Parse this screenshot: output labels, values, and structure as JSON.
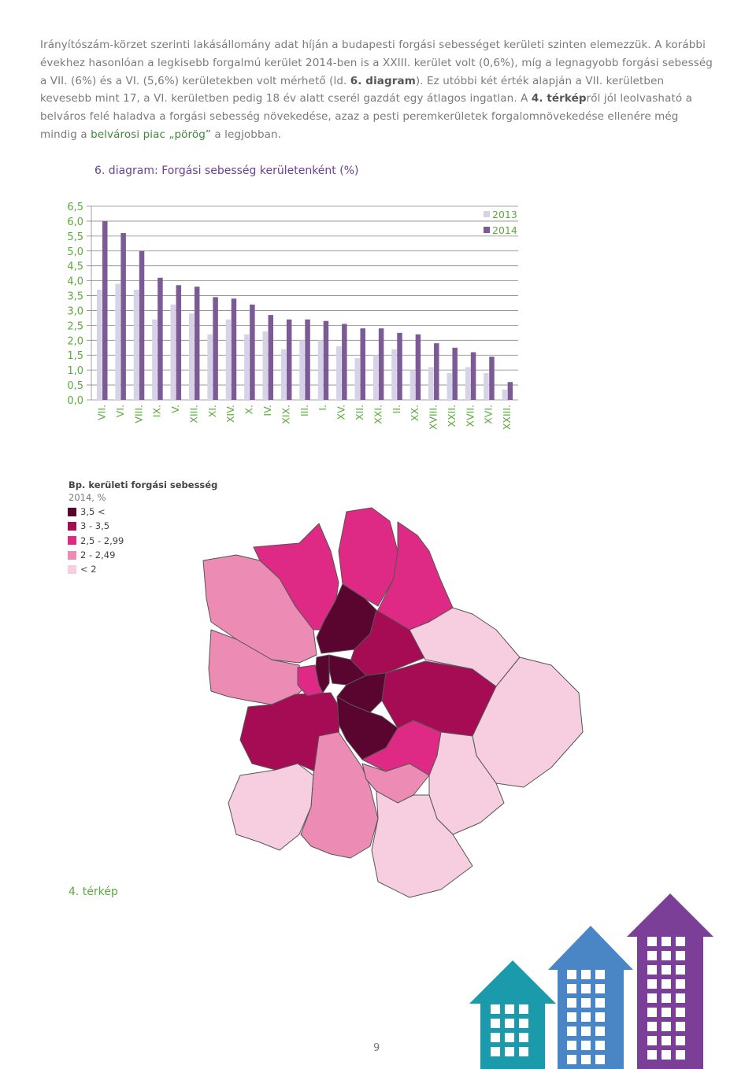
{
  "paragraph": {
    "part1": "Irányítószám-körzet szerinti lakásállomány adat híján a budapesti forgási sebességet kerületi szinten elemezzük. A korábbi évekhez hasonlóan a legkisebb forgalmú kerület 2014-ben is a XXIII. kerület volt (0,6%), míg a legnagyobb forgási sebesség a VII. (6%) és a VI. (5,6%) kerületekben volt mérhető (ld. ",
    "bold1": "6. diagram",
    "part2": "). Ez utóbbi két érték alapján a VII. kerületben kevesebb mint 17, a VI. kerületben pedig 18 év alatt cserél gazdát egy átlagos ingatlan. A ",
    "bold2": "4. térkép",
    "part3": "ről jól leolvasható a belváros felé haladva a forgási sebesség növekedése, azaz a pesti peremkerületek forgalomnövekedése ellenére még mindig a ",
    "green": "belvárosi piac „pörög”",
    "part4": " a legjobban."
  },
  "chart_data": {
    "type": "bar",
    "title": "6. diagram: Forgási sebesség kerületenként (%)",
    "categories": [
      "VII.",
      "VI.",
      "VIII.",
      "IX.",
      "V.",
      "XIII.",
      "XI.",
      "XIV.",
      "X.",
      "IV.",
      "XIX.",
      "III.",
      "I.",
      "XV.",
      "XII.",
      "XXI.",
      "II.",
      "XX.",
      "XVIII.",
      "XXII.",
      "XVII.",
      "XVI.",
      "XXIII."
    ],
    "series": [
      {
        "name": "2013",
        "color": "#d6d3e8",
        "values": [
          3.7,
          3.9,
          3.7,
          2.7,
          3.2,
          2.9,
          2.2,
          2.7,
          2.2,
          2.3,
          1.7,
          2.0,
          2.0,
          1.8,
          1.4,
          1.5,
          1.7,
          1.0,
          1.1,
          0.9,
          1.1,
          0.9,
          0.35
        ]
      },
      {
        "name": "2014",
        "color": "#7b5a96",
        "values": [
          6.0,
          5.6,
          5.0,
          4.1,
          3.85,
          3.8,
          3.45,
          3.4,
          3.2,
          2.85,
          2.7,
          2.7,
          2.65,
          2.55,
          2.4,
          2.4,
          2.25,
          2.2,
          1.9,
          1.75,
          1.6,
          1.45,
          0.6
        ]
      }
    ],
    "y_ticks": [
      "0,0",
      "0,5",
      "1,0",
      "1,5",
      "2,0",
      "2,5",
      "3,0",
      "3,5",
      "4,0",
      "4,5",
      "5,0",
      "5,5",
      "6,0",
      "6,5"
    ],
    "ylim": [
      0,
      6.5
    ],
    "grid": true,
    "legend_placement": "top-right",
    "tick_color": "#5aab3a",
    "label_color": "#5aab3a"
  },
  "map_legend": {
    "title": "Bp. kerületi forgási sebesség",
    "subtitle": "2014, %",
    "items": [
      {
        "label": "3,5 <",
        "color": "#5a0430"
      },
      {
        "label": "3 - 3,5",
        "color": "#a50c53"
      },
      {
        "label": "2,5 - 2,99",
        "color": "#de2a84"
      },
      {
        "label": "2 - 2,49",
        "color": "#ec8cb4"
      },
      {
        "label": "< 2",
        "color": "#f7cde0"
      }
    ]
  },
  "map_caption": "4. térkép",
  "page_number": "9",
  "decoration_colors": {
    "house_teal": "#1a9aaa",
    "house_blue": "#4a86c6",
    "house_purple": "#7c3f98"
  }
}
